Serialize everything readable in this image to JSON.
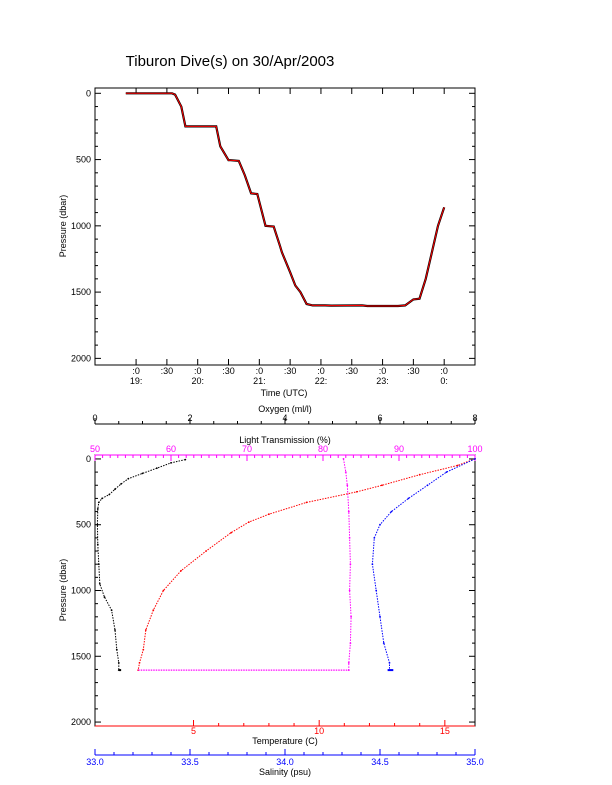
{
  "page_title": "Tiburon Dive(s) on 30/Apr/2003",
  "colors": {
    "oxygen": "#000000",
    "light_transmission": "#ff00ff",
    "temperature": "#ff0000",
    "salinity": "#0000ff",
    "time_series": "#ff0000",
    "time_series_points": "#000000"
  },
  "chart_data": [
    {
      "type": "line",
      "title": "Tiburon Dive(s) on 30/Apr/2003",
      "xlabel": "Time (UTC)",
      "ylabel": "Pressure (dbar)",
      "ylim": [
        2050,
        -40
      ],
      "y_ticks": [
        "0",
        "500",
        "1000",
        "1500",
        "2000"
      ],
      "x_tick_top": [
        ":0",
        ":30",
        ":0",
        ":30",
        ":0",
        ":30",
        ":0",
        ":30",
        ":0",
        ":30",
        ":0"
      ],
      "x_tick_bottom": [
        "19:",
        "",
        "20:",
        "",
        "21:",
        "",
        "22:",
        "",
        "23:",
        "",
        "0:"
      ],
      "x_tick_minutes": [
        0,
        30,
        60,
        90,
        120,
        150,
        180,
        210,
        240,
        270,
        300
      ],
      "series": [
        {
          "x_minutes": [
            -10,
            20,
            35,
            38,
            44,
            48,
            55,
            62,
            65,
            78,
            82,
            90,
            92,
            100,
            106,
            112,
            118,
            126,
            134,
            140,
            142,
            150,
            155,
            160,
            166,
            172,
            178,
            184,
            190,
            220,
            225,
            240,
            255,
            262,
            270,
            276,
            282,
            288,
            294,
            300
          ],
          "pressure": [
            0,
            0,
            0,
            10,
            100,
            250,
            250,
            250,
            250,
            250,
            400,
            505,
            505,
            510,
            620,
            755,
            760,
            1000,
            1005,
            1150,
            1200,
            1350,
            1450,
            1500,
            1590,
            1600,
            1600,
            1600,
            1602,
            1600,
            1605,
            1605,
            1605,
            1600,
            1555,
            1550,
            1400,
            1200,
            1000,
            860
          ]
        }
      ]
    },
    {
      "type": "scatter",
      "ylabel": "Pressure (dbar)",
      "ylim": [
        2030,
        -30
      ],
      "y_ticks": [
        "0",
        "500",
        "1000",
        "1500",
        "2000"
      ],
      "axes": {
        "oxygen": {
          "label": "Oxygen (ml/l)",
          "range": [
            0,
            8
          ],
          "ticks": [
            "0",
            "2",
            "4",
            "6",
            "8"
          ]
        },
        "light_transmission": {
          "label": "Light Transmission (%)",
          "range": [
            50,
            100
          ],
          "ticks": [
            "50",
            "60",
            "70",
            "80",
            "90",
            "100"
          ]
        },
        "temperature": {
          "label": "Temperature (C)",
          "range": [
            1.08,
            16.2
          ],
          "ticks": [
            "5",
            "10",
            "15"
          ]
        },
        "salinity": {
          "label": "Salinity (psu)",
          "range": [
            33.0,
            35.0
          ],
          "ticks": [
            "33.0",
            "33.5",
            "34.0",
            "34.5",
            "35.0"
          ]
        }
      },
      "series": [
        {
          "name": "Oxygen (ml/l)",
          "color": "#000000",
          "values": [
            [
              1.9,
              5
            ],
            [
              1.6,
              30
            ],
            [
              1.3,
              70
            ],
            [
              1.0,
              110
            ],
            [
              0.7,
              150
            ],
            [
              0.55,
              190
            ],
            [
              0.42,
              230
            ],
            [
              0.3,
              270
            ],
            [
              0.15,
              300
            ],
            [
              0.08,
              330
            ],
            [
              0.06,
              380
            ],
            [
              0.05,
              500
            ],
            [
              0.06,
              650
            ],
            [
              0.08,
              800
            ],
            [
              0.1,
              950
            ],
            [
              0.2,
              1050
            ],
            [
              0.35,
              1150
            ],
            [
              0.42,
              1300
            ],
            [
              0.46,
              1450
            ],
            [
              0.5,
              1550
            ],
            [
              0.5,
              1605
            ]
          ]
        },
        {
          "name": "Light Transmission (%)",
          "color": "#ff00ff",
          "values": [
            [
              82.7,
              0
            ],
            [
              83.0,
              100
            ],
            [
              83.2,
              200
            ],
            [
              83.4,
              400
            ],
            [
              83.5,
              600
            ],
            [
              83.6,
              800
            ],
            [
              83.5,
              1000
            ],
            [
              83.7,
              1200
            ],
            [
              83.6,
              1400
            ],
            [
              83.4,
              1550
            ],
            [
              83.4,
              1605
            ]
          ]
        },
        {
          "name": "Temperature (C)",
          "color": "#ff0000",
          "values": [
            [
              16.2,
              0
            ],
            [
              15.5,
              50
            ],
            [
              14.0,
              120
            ],
            [
              12.5,
              200
            ],
            [
              11.5,
              250
            ],
            [
              9.5,
              330
            ],
            [
              8.0,
              420
            ],
            [
              7.2,
              480
            ],
            [
              6.5,
              560
            ],
            [
              5.5,
              700
            ],
            [
              4.5,
              850
            ],
            [
              3.8,
              1000
            ],
            [
              3.4,
              1150
            ],
            [
              3.1,
              1300
            ],
            [
              3.0,
              1450
            ],
            [
              2.85,
              1550
            ],
            [
              2.8,
              1605
            ]
          ]
        },
        {
          "name": "Salinity (psu)",
          "color": "#0000ff",
          "values": [
            [
              35.0,
              0
            ],
            [
              34.85,
              100
            ],
            [
              34.75,
              200
            ],
            [
              34.65,
              300
            ],
            [
              34.56,
              400
            ],
            [
              34.5,
              500
            ],
            [
              34.47,
              600
            ],
            [
              34.46,
              800
            ],
            [
              34.48,
              1000
            ],
            [
              34.5,
              1200
            ],
            [
              34.52,
              1400
            ],
            [
              34.55,
              1550
            ],
            [
              34.55,
              1605
            ]
          ]
        }
      ]
    }
  ]
}
